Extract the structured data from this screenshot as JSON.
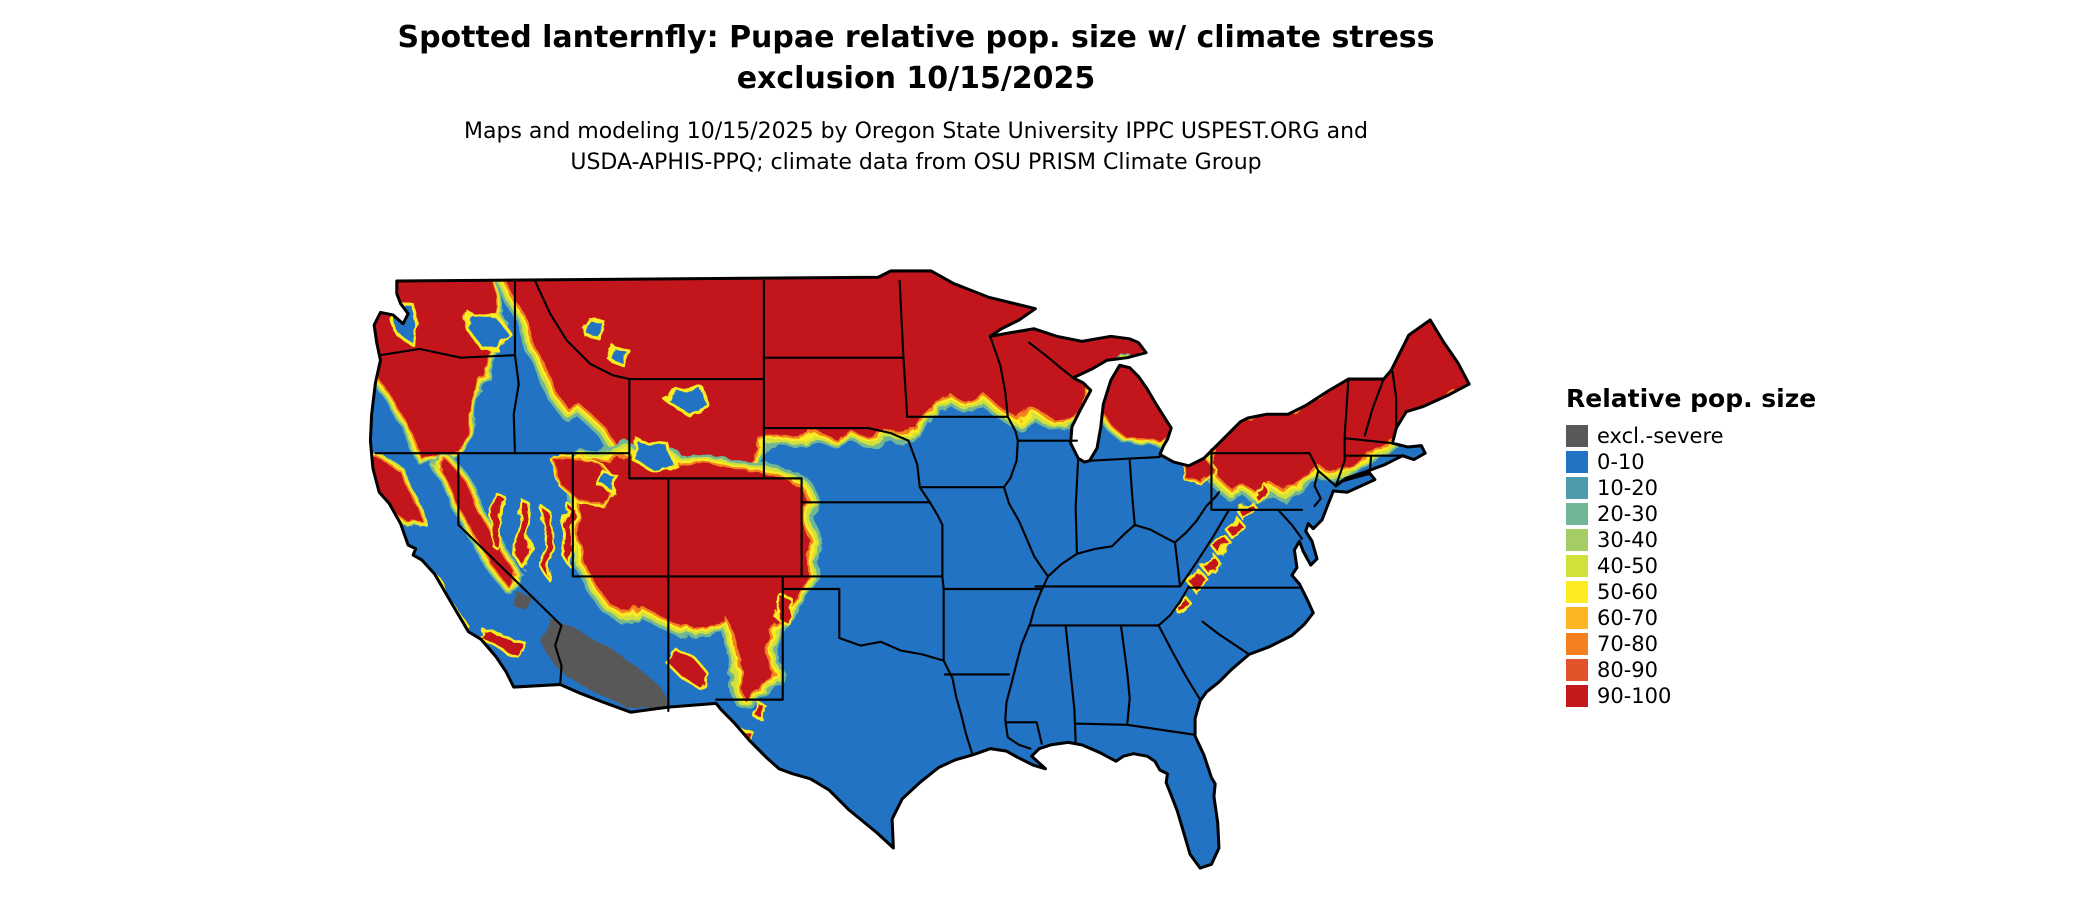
{
  "header": {
    "title_line1": "Spotted lanternfly: Pupae relative pop. size w/ climate stress",
    "title_line2": "exclusion 10/15/2025",
    "subtitle_line1": "Maps and modeling 10/15/2025 by Oregon State University IPPC USPEST.ORG and",
    "subtitle_line2": "USDA-APHIS-PPQ; climate data from OSU PRISM Climate Group"
  },
  "legend": {
    "title": "Relative pop. size",
    "items": [
      {
        "key": "excl",
        "label": "excl.-severe",
        "color": "#595959"
      },
      {
        "key": "b0",
        "label": "0-10",
        "color": "#2273c3"
      },
      {
        "key": "b10",
        "label": "10-20",
        "color": "#4d9cad"
      },
      {
        "key": "b20",
        "label": "20-30",
        "color": "#71b795"
      },
      {
        "key": "b30",
        "label": "30-40",
        "color": "#a6cc65"
      },
      {
        "key": "b40",
        "label": "40-50",
        "color": "#d2e03c"
      },
      {
        "key": "b50",
        "label": "50-60",
        "color": "#fdec22"
      },
      {
        "key": "b60",
        "label": "60-70",
        "color": "#fbb622"
      },
      {
        "key": "b70",
        "label": "70-80",
        "color": "#f48120"
      },
      {
        "key": "b80",
        "label": "80-90",
        "color": "#e0532b"
      },
      {
        "key": "b90",
        "label": "90-100",
        "color": "#c3191d"
      }
    ]
  }
}
